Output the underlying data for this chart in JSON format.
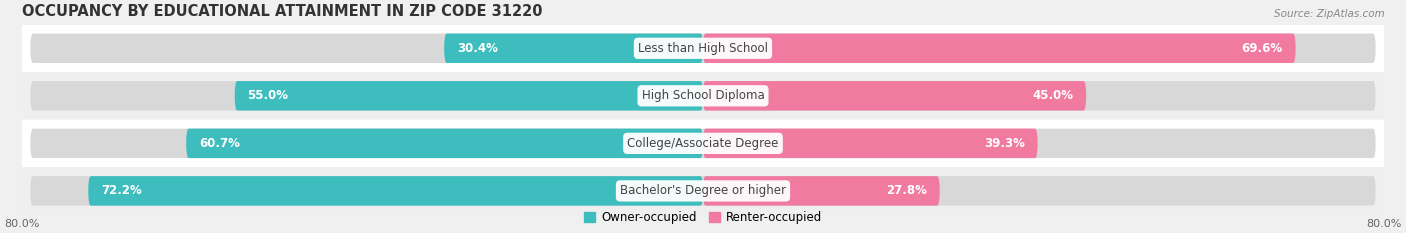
{
  "title": "OCCUPANCY BY EDUCATIONAL ATTAINMENT IN ZIP CODE 31220",
  "source": "Source: ZipAtlas.com",
  "categories": [
    "Less than High School",
    "High School Diploma",
    "College/Associate Degree",
    "Bachelor's Degree or higher"
  ],
  "owner_values": [
    30.4,
    55.0,
    60.7,
    72.2
  ],
  "renter_values": [
    69.6,
    45.0,
    39.3,
    27.8
  ],
  "owner_color": "#3dbdbd",
  "renter_color": "#f07aa0",
  "owner_color_light": "#a8dede",
  "renter_color_light": "#f9c0d3",
  "background_color": "#f0f0f0",
  "row_colors": [
    "#ffffff",
    "#efefef",
    "#ffffff",
    "#efefef"
  ],
  "xlim_left": -80.0,
  "xlim_right": 80.0,
  "title_fontsize": 10.5,
  "bar_label_fontsize": 8.5,
  "cat_label_fontsize": 8.5,
  "tick_fontsize": 8,
  "legend_fontsize": 8.5,
  "bar_height": 0.62
}
